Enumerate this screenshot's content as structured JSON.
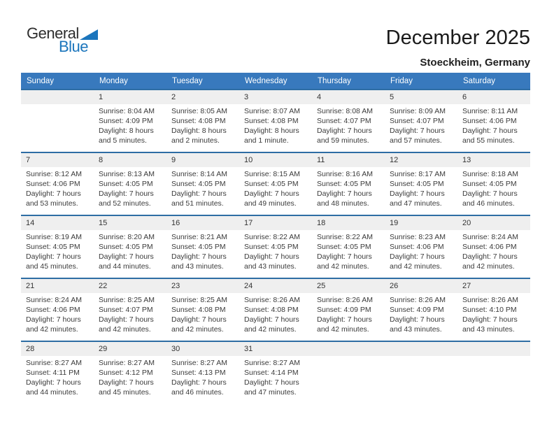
{
  "colors": {
    "header_blue": "#3879BD",
    "row_border_blue": "#2E6DA4",
    "strip_gray": "#EFEFEF",
    "cell_text": "#3B3B3B",
    "title_text": "#1A1A1A",
    "logo_blue": "#1B75BC",
    "logo_dark": "#2E2E2E"
  },
  "logo": {
    "word1": "General",
    "word2": "Blue",
    "triangle_icon": "blue-right-triangle"
  },
  "header": {
    "title": "December 2025",
    "subtitle": "Stoeckheim, Germany"
  },
  "weekday_headers": [
    "Sunday",
    "Monday",
    "Tuesday",
    "Wednesday",
    "Thursday",
    "Friday",
    "Saturday"
  ],
  "weeks": [
    [
      {
        "day": ""
      },
      {
        "day": "1",
        "sunrise": "Sunrise: 8:04 AM",
        "sunset": "Sunset: 4:09 PM",
        "daylight": "Daylight: 8 hours and 5 minutes."
      },
      {
        "day": "2",
        "sunrise": "Sunrise: 8:05 AM",
        "sunset": "Sunset: 4:08 PM",
        "daylight": "Daylight: 8 hours and 2 minutes."
      },
      {
        "day": "3",
        "sunrise": "Sunrise: 8:07 AM",
        "sunset": "Sunset: 4:08 PM",
        "daylight": "Daylight: 8 hours and 1 minute."
      },
      {
        "day": "4",
        "sunrise": "Sunrise: 8:08 AM",
        "sunset": "Sunset: 4:07 PM",
        "daylight": "Daylight: 7 hours and 59 minutes."
      },
      {
        "day": "5",
        "sunrise": "Sunrise: 8:09 AM",
        "sunset": "Sunset: 4:07 PM",
        "daylight": "Daylight: 7 hours and 57 minutes."
      },
      {
        "day": "6",
        "sunrise": "Sunrise: 8:11 AM",
        "sunset": "Sunset: 4:06 PM",
        "daylight": "Daylight: 7 hours and 55 minutes."
      }
    ],
    [
      {
        "day": "7",
        "sunrise": "Sunrise: 8:12 AM",
        "sunset": "Sunset: 4:06 PM",
        "daylight": "Daylight: 7 hours and 53 minutes."
      },
      {
        "day": "8",
        "sunrise": "Sunrise: 8:13 AM",
        "sunset": "Sunset: 4:05 PM",
        "daylight": "Daylight: 7 hours and 52 minutes."
      },
      {
        "day": "9",
        "sunrise": "Sunrise: 8:14 AM",
        "sunset": "Sunset: 4:05 PM",
        "daylight": "Daylight: 7 hours and 51 minutes."
      },
      {
        "day": "10",
        "sunrise": "Sunrise: 8:15 AM",
        "sunset": "Sunset: 4:05 PM",
        "daylight": "Daylight: 7 hours and 49 minutes."
      },
      {
        "day": "11",
        "sunrise": "Sunrise: 8:16 AM",
        "sunset": "Sunset: 4:05 PM",
        "daylight": "Daylight: 7 hours and 48 minutes."
      },
      {
        "day": "12",
        "sunrise": "Sunrise: 8:17 AM",
        "sunset": "Sunset: 4:05 PM",
        "daylight": "Daylight: 7 hours and 47 minutes."
      },
      {
        "day": "13",
        "sunrise": "Sunrise: 8:18 AM",
        "sunset": "Sunset: 4:05 PM",
        "daylight": "Daylight: 7 hours and 46 minutes."
      }
    ],
    [
      {
        "day": "14",
        "sunrise": "Sunrise: 8:19 AM",
        "sunset": "Sunset: 4:05 PM",
        "daylight": "Daylight: 7 hours and 45 minutes."
      },
      {
        "day": "15",
        "sunrise": "Sunrise: 8:20 AM",
        "sunset": "Sunset: 4:05 PM",
        "daylight": "Daylight: 7 hours and 44 minutes."
      },
      {
        "day": "16",
        "sunrise": "Sunrise: 8:21 AM",
        "sunset": "Sunset: 4:05 PM",
        "daylight": "Daylight: 7 hours and 43 minutes."
      },
      {
        "day": "17",
        "sunrise": "Sunrise: 8:22 AM",
        "sunset": "Sunset: 4:05 PM",
        "daylight": "Daylight: 7 hours and 43 minutes."
      },
      {
        "day": "18",
        "sunrise": "Sunrise: 8:22 AM",
        "sunset": "Sunset: 4:05 PM",
        "daylight": "Daylight: 7 hours and 42 minutes."
      },
      {
        "day": "19",
        "sunrise": "Sunrise: 8:23 AM",
        "sunset": "Sunset: 4:06 PM",
        "daylight": "Daylight: 7 hours and 42 minutes."
      },
      {
        "day": "20",
        "sunrise": "Sunrise: 8:24 AM",
        "sunset": "Sunset: 4:06 PM",
        "daylight": "Daylight: 7 hours and 42 minutes."
      }
    ],
    [
      {
        "day": "21",
        "sunrise": "Sunrise: 8:24 AM",
        "sunset": "Sunset: 4:06 PM",
        "daylight": "Daylight: 7 hours and 42 minutes."
      },
      {
        "day": "22",
        "sunrise": "Sunrise: 8:25 AM",
        "sunset": "Sunset: 4:07 PM",
        "daylight": "Daylight: 7 hours and 42 minutes."
      },
      {
        "day": "23",
        "sunrise": "Sunrise: 8:25 AM",
        "sunset": "Sunset: 4:08 PM",
        "daylight": "Daylight: 7 hours and 42 minutes."
      },
      {
        "day": "24",
        "sunrise": "Sunrise: 8:26 AM",
        "sunset": "Sunset: 4:08 PM",
        "daylight": "Daylight: 7 hours and 42 minutes."
      },
      {
        "day": "25",
        "sunrise": "Sunrise: 8:26 AM",
        "sunset": "Sunset: 4:09 PM",
        "daylight": "Daylight: 7 hours and 42 minutes."
      },
      {
        "day": "26",
        "sunrise": "Sunrise: 8:26 AM",
        "sunset": "Sunset: 4:09 PM",
        "daylight": "Daylight: 7 hours and 43 minutes."
      },
      {
        "day": "27",
        "sunrise": "Sunrise: 8:26 AM",
        "sunset": "Sunset: 4:10 PM",
        "daylight": "Daylight: 7 hours and 43 minutes."
      }
    ],
    [
      {
        "day": "28",
        "sunrise": "Sunrise: 8:27 AM",
        "sunset": "Sunset: 4:11 PM",
        "daylight": "Daylight: 7 hours and 44 minutes."
      },
      {
        "day": "29",
        "sunrise": "Sunrise: 8:27 AM",
        "sunset": "Sunset: 4:12 PM",
        "daylight": "Daylight: 7 hours and 45 minutes."
      },
      {
        "day": "30",
        "sunrise": "Sunrise: 8:27 AM",
        "sunset": "Sunset: 4:13 PM",
        "daylight": "Daylight: 7 hours and 46 minutes."
      },
      {
        "day": "31",
        "sunrise": "Sunrise: 8:27 AM",
        "sunset": "Sunset: 4:14 PM",
        "daylight": "Daylight: 7 hours and 47 minutes."
      },
      {
        "day": ""
      },
      {
        "day": ""
      },
      {
        "day": ""
      }
    ]
  ]
}
